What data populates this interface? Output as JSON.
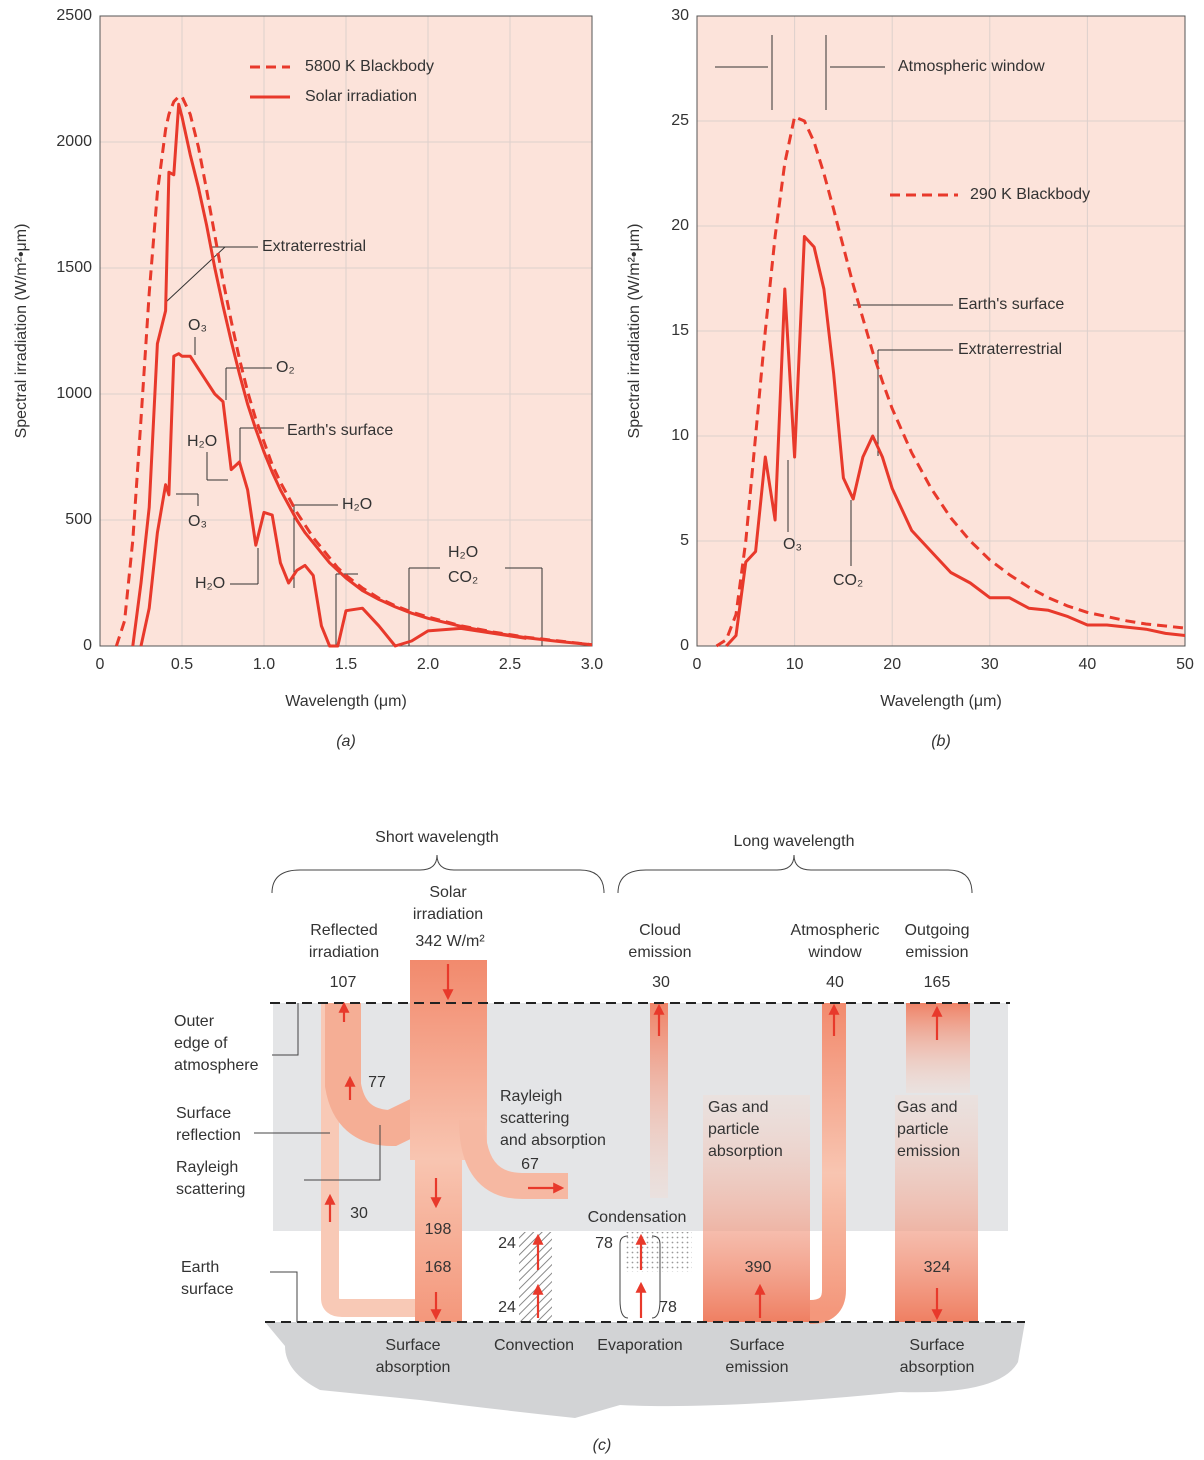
{
  "chart_data": [
    {
      "type": "line",
      "label": "(a)",
      "x_label": "Wavelength (μm)",
      "y_label": "Spectral irradiation (W/m²•μm)",
      "x": [
        0.1,
        0.15,
        0.2,
        0.25,
        0.3,
        0.35,
        0.4,
        0.42,
        0.45,
        0.48,
        0.5,
        0.55,
        0.6,
        0.65,
        0.7,
        0.75,
        0.8,
        0.85,
        0.9,
        0.95,
        1.0,
        1.05,
        1.1,
        1.15,
        1.2,
        1.25,
        1.3,
        1.35,
        1.4,
        1.45,
        1.5,
        1.6,
        1.7,
        1.8,
        1.9,
        2.0,
        2.2,
        2.4,
        2.6,
        2.8,
        3.0
      ],
      "series": [
        {
          "name": "5800 K Blackbody",
          "color": "#e8392b",
          "dashed": true,
          "values": [
            0,
            100,
            420,
            900,
            1400,
            1800,
            2050,
            2110,
            2160,
            2180,
            2180,
            2110,
            1980,
            1810,
            1630,
            1450,
            1290,
            1140,
            1010,
            900,
            810,
            720,
            650,
            590,
            530,
            480,
            430,
            390,
            350,
            310,
            280,
            230,
            190,
            160,
            135,
            115,
            80,
            55,
            35,
            20,
            5
          ]
        },
        {
          "name": "Solar irradiation",
          "color": "#e8392b",
          "dashed": false,
          "values": [
            null,
            null,
            0,
            250,
            550,
            1200,
            1330,
            1880,
            1870,
            2150,
            2100,
            1950,
            1820,
            1670,
            1500,
            1350,
            1210,
            1080,
            960,
            860,
            770,
            690,
            620,
            560,
            500,
            450,
            410,
            370,
            330,
            300,
            270,
            220,
            185,
            155,
            130,
            110,
            78,
            52,
            33,
            18,
            5
          ]
        },
        {
          "color": "#e8392b",
          "dashed": false,
          "values": [
            null,
            null,
            null,
            0,
            150,
            450,
            640,
            600,
            1150,
            1160,
            1150,
            1150,
            1100,
            1050,
            1000,
            970,
            700,
            730,
            620,
            400,
            530,
            520,
            330,
            250,
            300,
            320,
            280,
            80,
            0,
            0,
            140,
            150,
            80,
            0,
            20,
            60,
            70,
            50,
            30,
            null,
            null
          ]
        }
      ],
      "xlim": [
        0,
        3
      ],
      "xticks": [
        0,
        0.5,
        {
          "value": 1,
          "label": "1.0"
        },
        1.5,
        {
          "value": 2,
          "label": "2.0"
        },
        2.5,
        {
          "value": 3,
          "label": "3.0"
        }
      ],
      "ylim": [
        0,
        2500
      ],
      "yticks": [
        0,
        500,
        1000,
        1500,
        2000,
        2500
      ],
      "grid": true,
      "plot_color": "#fce3da",
      "annotations": [
        "Extraterrestrial",
        "O₃",
        "O₂",
        "Earth's surface",
        "H₂O",
        "O₃",
        "H₂O",
        "H₂O",
        "H₂O",
        "CO₂"
      ]
    },
    {
      "type": "line",
      "label": "(b)",
      "x_label": "Wavelength (μm)",
      "y_label": "Spectral irradiation (W/m²•μm)",
      "x": [
        2,
        3,
        4,
        5,
        6,
        7,
        8,
        9,
        10,
        11,
        12,
        13,
        14,
        15,
        16,
        17,
        18,
        19,
        20,
        22,
        24,
        26,
        28,
        30,
        32,
        34,
        36,
        38,
        40,
        42,
        44,
        46,
        48,
        50
      ],
      "series": [
        {
          "name": "290 K Blackbody",
          "color": "#e8392b",
          "dashed": true,
          "values": [
            0,
            0.3,
            1.5,
            5,
            10,
            15,
            19.5,
            23,
            25.2,
            25,
            24,
            22.5,
            20.8,
            19,
            17.2,
            15.6,
            14,
            12.6,
            11.3,
            9.2,
            7.5,
            6.1,
            5,
            4.1,
            3.4,
            2.8,
            2.3,
            1.9,
            1.6,
            1.4,
            1.2,
            1.05,
            0.95,
            0.85
          ]
        },
        {
          "color": "#e8392b",
          "dashed": false,
          "values": [
            null,
            0,
            0.5,
            4,
            4.5,
            9,
            6,
            17,
            9,
            19.5,
            19,
            17,
            13,
            8,
            7,
            9,
            10,
            9,
            7.5,
            5.5,
            4.5,
            3.5,
            3,
            2.3,
            2.3,
            1.8,
            1.7,
            1.4,
            1,
            1,
            0.9,
            0.8,
            0.6,
            0.5
          ]
        }
      ],
      "xlim": [
        0,
        50
      ],
      "xticks": [
        0,
        10,
        20,
        30,
        40,
        50
      ],
      "ylim": [
        0,
        30
      ],
      "yticks": [
        0,
        5,
        10,
        15,
        20,
        25,
        30
      ],
      "grid": true,
      "plot_color": "#fce3da",
      "annotations": [
        "Atmospheric window",
        "Earth's surface",
        "Extraterrestrial",
        "O₃",
        "CO₂"
      ]
    }
  ],
  "diagram": {
    "label": "(c)",
    "labels": [
      [
        "Short wavelength"
      ],
      [
        "Long wavelength"
      ],
      [
        "Solar",
        "irradiation",
        "342 W/m²"
      ],
      [
        "Reflected",
        "irradiation"
      ],
      [
        "Cloud",
        "emission"
      ],
      [
        "Atmospheric",
        "window"
      ],
      [
        "Outgoing",
        "emission"
      ],
      [
        "Outer",
        "edge of",
        "atmosphere"
      ],
      [
        "Surface",
        "reflection"
      ],
      [
        "Rayleigh",
        "scattering"
      ],
      [
        "Earth",
        "surface"
      ],
      [
        "Rayleigh",
        "scattering",
        "and absorption"
      ],
      [
        "Gas and",
        "particle",
        "absorption"
      ],
      [
        "Gas and",
        "particle",
        "emission"
      ],
      [
        "Condensation"
      ],
      [
        "Surface",
        "absorption"
      ],
      [
        "Convection"
      ],
      [
        "Evaporation"
      ],
      [
        "Surface",
        "emission"
      ],
      [
        "Surface",
        "absorption"
      ]
    ],
    "fluxes": [
      107,
      30,
      40,
      165,
      77,
      30,
      67,
      198,
      168,
      24,
      24,
      78,
      78,
      390,
      324
    ]
  }
}
